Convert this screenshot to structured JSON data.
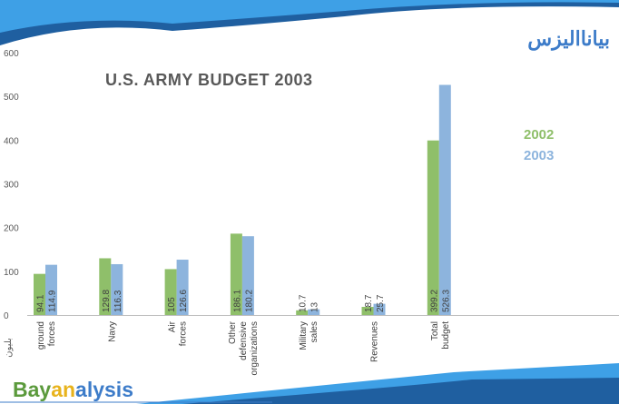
{
  "chart_data": {
    "type": "bar",
    "title": "U.S. ARMY BUDGET 2003",
    "ylabel": "بليون",
    "ylim": [
      0,
      600
    ],
    "yticks": [
      0,
      100,
      200,
      300,
      400,
      500,
      600
    ],
    "grid": false,
    "legend_placement": "right",
    "categories": [
      [
        "ground",
        "forces"
      ],
      [
        "Navy"
      ],
      [
        "Air",
        "forces"
      ],
      [
        "Other",
        "defensive",
        "organizations"
      ],
      [
        "Military",
        "sales"
      ],
      [
        "Revenues"
      ],
      [
        "Total",
        "budget"
      ]
    ],
    "series": [
      {
        "name": "2002",
        "color": "#8fbf6a",
        "values": [
          94.1,
          129.8,
          105,
          186.1,
          10.7,
          18.7,
          399.2
        ]
      },
      {
        "name": "2003",
        "color": "#8db4dd",
        "values": [
          114.9,
          116.3,
          126.6,
          180.2,
          13,
          25.7,
          526.3
        ]
      }
    ],
    "data_labels": [
      [
        "94.1",
        "129.8",
        "105",
        "186.1",
        "10.7",
        "18.7",
        "399.2"
      ],
      [
        "114.9",
        "116.3",
        "126.6",
        "180.2",
        "13",
        "25.7",
        "526.3"
      ]
    ]
  },
  "branding": {
    "logo_latin": [
      "Bay",
      "an",
      "alysis"
    ],
    "logo_arabic": "بيانااليزس",
    "colors": {
      "green": "#5b9a3c",
      "yellow": "#e8b31c",
      "blue": "#3d7cc9",
      "dark_blue": "#1f5fa0",
      "light_blue": "#3ea0e6"
    }
  }
}
